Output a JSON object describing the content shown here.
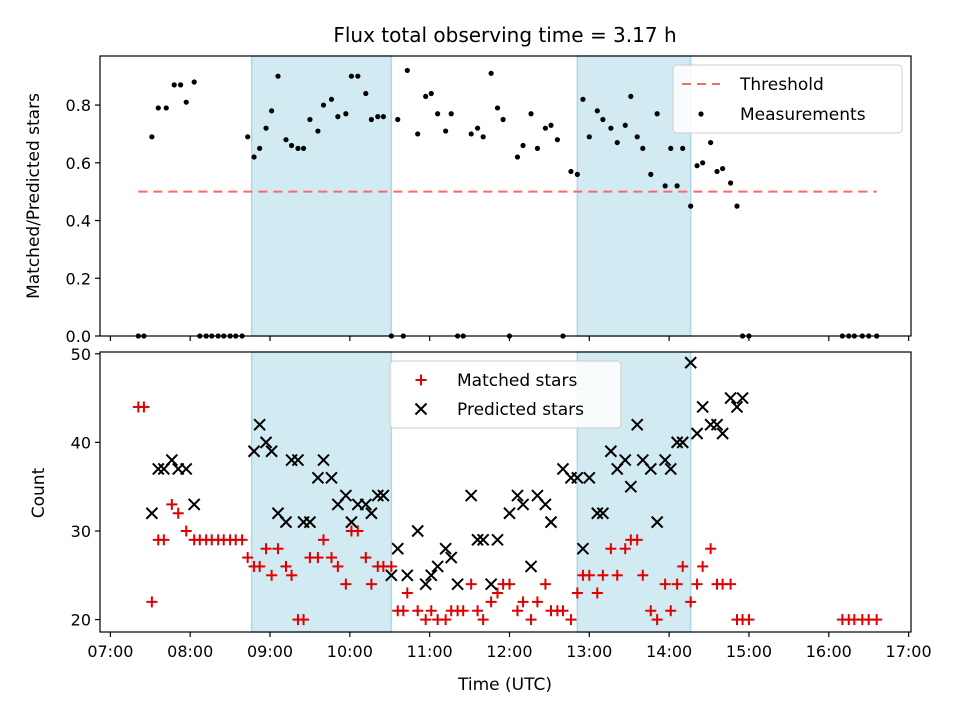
{
  "title": "Flux total observing time = 3.17 h",
  "colors": {
    "threshold": "#ff6666",
    "measurements": "#000000",
    "matched": "#e00000",
    "predicted": "#000000",
    "shade": "#add8e6"
  },
  "chart_data": [
    {
      "type": "scatter",
      "ylabel": "Matched/Predicted stars",
      "xlim": [
        6.87,
        17.03
      ],
      "ylim": [
        0,
        0.97
      ],
      "yticks": [
        0.0,
        0.2,
        0.4,
        0.6,
        0.8
      ],
      "ytick_labels": [
        "0.0",
        "0.2",
        "0.4",
        "0.6",
        "0.8"
      ],
      "shaded_intervals": [
        [
          8.77,
          10.52
        ],
        [
          12.85,
          14.27
        ]
      ],
      "legend": {
        "position": "top-right",
        "entries": [
          "Threshold",
          "Measurements"
        ]
      },
      "threshold": {
        "name": "Threshold",
        "y": 0.5,
        "x_range": [
          7.35,
          16.6
        ]
      },
      "series": [
        {
          "name": "Measurements",
          "x": [
            7.35,
            7.42,
            7.52,
            7.6,
            7.7,
            7.8,
            7.88,
            7.95,
            8.05,
            8.12,
            8.2,
            8.27,
            8.35,
            8.42,
            8.5,
            8.57,
            8.65,
            8.72,
            8.8,
            8.87,
            8.95,
            9.02,
            9.1,
            9.2,
            9.27,
            9.35,
            9.42,
            9.5,
            9.6,
            9.67,
            9.77,
            9.85,
            9.95,
            10.02,
            10.1,
            10.2,
            10.27,
            10.35,
            10.42,
            10.52,
            10.6,
            10.67,
            10.72,
            10.85,
            10.95,
            11.02,
            11.1,
            11.2,
            11.27,
            11.35,
            11.42,
            11.52,
            11.6,
            11.67,
            11.77,
            11.85,
            11.92,
            12.0,
            12.1,
            12.17,
            12.27,
            12.35,
            12.45,
            12.52,
            12.6,
            12.67,
            12.77,
            12.85,
            12.92,
            13.0,
            13.1,
            13.17,
            13.27,
            13.35,
            13.45,
            13.52,
            13.6,
            13.67,
            13.77,
            13.85,
            13.95,
            14.02,
            14.1,
            14.17,
            14.27,
            14.35,
            14.42,
            14.52,
            14.6,
            14.67,
            14.77,
            14.85,
            14.92,
            15.0,
            16.17,
            16.25,
            16.32,
            16.42,
            16.5,
            16.6
          ],
          "y": [
            0.0,
            0.0,
            0.69,
            0.79,
            0.79,
            0.87,
            0.87,
            0.81,
            0.88,
            0.0,
            0.0,
            0.0,
            0.0,
            0.0,
            0.0,
            0.0,
            0.0,
            0.69,
            0.62,
            0.65,
            0.72,
            0.78,
            0.9,
            0.68,
            0.66,
            0.65,
            0.65,
            0.75,
            0.71,
            0.8,
            0.82,
            0.76,
            0.77,
            0.9,
            0.9,
            0.84,
            0.75,
            0.76,
            0.76,
            0.0,
            0.75,
            0.0,
            0.92,
            0.7,
            0.83,
            0.84,
            0.77,
            0.71,
            0.77,
            0.0,
            0.0,
            0.7,
            0.72,
            0.69,
            0.91,
            0.79,
            0.75,
            0.0,
            0.62,
            0.66,
            0.77,
            0.65,
            0.72,
            0.73,
            0.68,
            0.0,
            0.57,
            0.56,
            0.82,
            0.69,
            0.78,
            0.75,
            0.72,
            0.67,
            0.73,
            0.83,
            0.69,
            0.65,
            0.56,
            0.77,
            0.52,
            0.65,
            0.52,
            0.65,
            0.45,
            0.59,
            0.6,
            0.67,
            0.57,
            0.58,
            0.53,
            0.45,
            0.0,
            0.0,
            0.0,
            0.0,
            0.0,
            0.0,
            0.0,
            0.0
          ]
        }
      ]
    },
    {
      "type": "scatter",
      "xlabel": "Time (UTC)",
      "ylabel": "Count",
      "xlim": [
        6.87,
        17.03
      ],
      "ylim": [
        18.6,
        50.2
      ],
      "xticks": [
        7,
        8,
        9,
        10,
        11,
        12,
        13,
        14,
        15,
        16,
        17
      ],
      "xtick_labels": [
        "07:00",
        "08:00",
        "09:00",
        "10:00",
        "11:00",
        "12:00",
        "13:00",
        "14:00",
        "15:00",
        "16:00",
        "17:00"
      ],
      "yticks": [
        20,
        30,
        40,
        50
      ],
      "ytick_labels": [
        "20",
        "30",
        "40",
        "50"
      ],
      "shaded_intervals": [
        [
          8.77,
          10.52
        ],
        [
          12.85,
          14.27
        ]
      ],
      "legend": {
        "position": "top-center",
        "entries": [
          "Matched stars",
          "Predicted stars"
        ]
      },
      "series": [
        {
          "name": "Matched stars",
          "x": [
            7.35,
            7.42,
            7.52,
            7.6,
            7.67,
            7.77,
            7.85,
            7.95,
            8.05,
            8.12,
            8.2,
            8.27,
            8.35,
            8.42,
            8.5,
            8.57,
            8.65,
            8.72,
            8.8,
            8.87,
            8.95,
            9.02,
            9.1,
            9.2,
            9.27,
            9.35,
            9.42,
            9.5,
            9.6,
            9.67,
            9.77,
            9.85,
            9.95,
            10.02,
            10.1,
            10.2,
            10.27,
            10.35,
            10.42,
            10.52,
            10.6,
            10.67,
            10.72,
            10.85,
            10.95,
            11.02,
            11.1,
            11.2,
            11.27,
            11.35,
            11.42,
            11.52,
            11.6,
            11.67,
            11.77,
            11.85,
            11.92,
            12.0,
            12.1,
            12.17,
            12.27,
            12.35,
            12.45,
            12.52,
            12.6,
            12.67,
            12.77,
            12.85,
            12.92,
            13.0,
            13.1,
            13.17,
            13.27,
            13.35,
            13.45,
            13.52,
            13.6,
            13.67,
            13.77,
            13.85,
            13.95,
            14.02,
            14.1,
            14.17,
            14.27,
            14.35,
            14.42,
            14.52,
            14.6,
            14.67,
            14.77,
            14.85,
            14.92,
            15.0,
            16.17,
            16.25,
            16.32,
            16.42,
            16.5,
            16.6
          ],
          "y": [
            44,
            44,
            22,
            29,
            29,
            33,
            32,
            30,
            29,
            29,
            29,
            29,
            29,
            29,
            29,
            29,
            29,
            27,
            26,
            26,
            28,
            25,
            28,
            26,
            25,
            20,
            20,
            27,
            27,
            29,
            27,
            26,
            24,
            30,
            30,
            27,
            24,
            26,
            26,
            26,
            21,
            21,
            23,
            21,
            20,
            21,
            20,
            20,
            21,
            21,
            21,
            24,
            21,
            20,
            22,
            23,
            24,
            24,
            21,
            22,
            20,
            22,
            24,
            21,
            21,
            21,
            20,
            23,
            25,
            25,
            23,
            25,
            28,
            25,
            28,
            29,
            29,
            25,
            21,
            20,
            24,
            21,
            24,
            26,
            22,
            24,
            26,
            28,
            24,
            24,
            24,
            20,
            20,
            20,
            20,
            20,
            20,
            20,
            20,
            20
          ]
        },
        {
          "name": "Predicted stars",
          "x": [
            7.52,
            7.6,
            7.67,
            7.77,
            7.85,
            7.95,
            8.05,
            8.8,
            8.87,
            8.95,
            9.02,
            9.1,
            9.2,
            9.27,
            9.35,
            9.42,
            9.5,
            9.6,
            9.67,
            9.77,
            9.85,
            9.95,
            10.02,
            10.1,
            10.2,
            10.27,
            10.35,
            10.42,
            10.52,
            10.6,
            10.72,
            10.85,
            10.95,
            11.02,
            11.1,
            11.2,
            11.27,
            11.35,
            11.52,
            11.6,
            11.67,
            11.77,
            11.85,
            12.0,
            12.1,
            12.17,
            12.27,
            12.35,
            12.45,
            12.52,
            12.67,
            12.77,
            12.85,
            12.92,
            13.0,
            13.1,
            13.17,
            13.27,
            13.35,
            13.45,
            13.52,
            13.6,
            13.67,
            13.77,
            13.85,
            13.95,
            14.02,
            14.1,
            14.17,
            14.27,
            14.35,
            14.42,
            14.52,
            14.6,
            14.67,
            14.77,
            14.85,
            14.92
          ],
          "y": [
            32,
            37,
            37,
            38,
            37,
            37,
            33,
            39,
            42,
            40,
            39,
            32,
            31,
            38,
            38,
            31,
            31,
            36,
            38,
            36,
            33,
            34,
            31,
            33,
            33,
            32,
            34,
            34,
            25,
            28,
            25,
            30,
            24,
            25,
            26,
            28,
            27,
            24,
            34,
            29,
            29,
            24,
            29,
            32,
            34,
            33,
            26,
            34,
            33,
            31,
            37,
            36,
            36,
            28,
            36,
            32,
            32,
            39,
            37,
            38,
            35,
            42,
            38,
            37,
            31,
            38,
            37,
            40,
            40,
            49,
            41,
            44,
            42,
            42,
            41,
            45,
            44,
            45
          ]
        }
      ]
    }
  ]
}
